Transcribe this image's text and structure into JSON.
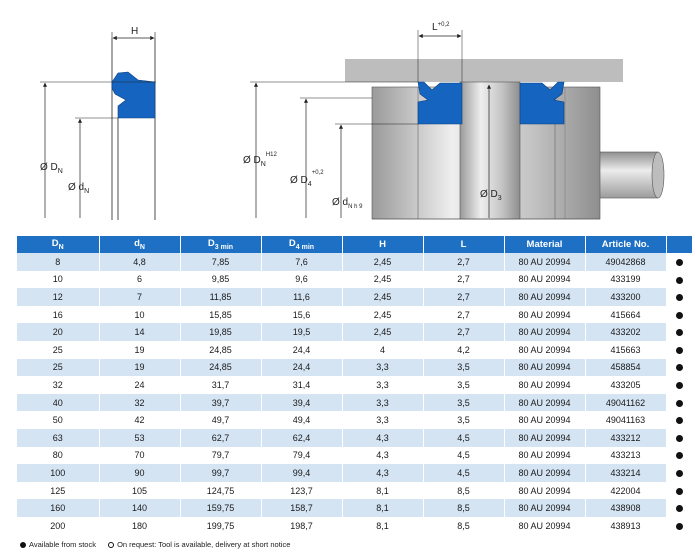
{
  "drawing": {
    "left_labels": {
      "h": "H",
      "dn_prefix": "Ø D",
      "dn_sub": "N",
      "dn2_prefix": "Ø d",
      "dn2_sub": "N"
    },
    "right_labels": {
      "l": "L",
      "l_tol": "+0,2",
      "dn_prefix": "Ø D",
      "dn_sub": "N",
      "dn_sup": "H12",
      "d4_prefix": "Ø D",
      "d4_sub": "4",
      "d4_sup": "+0,2",
      "dnh_prefix": "Ø d",
      "dnh_sub": "N h 9",
      "d3_prefix": "Ø D",
      "d3_sub": "3"
    },
    "colors": {
      "seal": "#1565c0",
      "metal": "#c9c9c9",
      "housing": "#bdbdbd"
    }
  },
  "table": {
    "headers": [
      {
        "main": "D",
        "sub": "N"
      },
      {
        "main": "d",
        "sub": "N"
      },
      {
        "main": "D",
        "sub": "3 min"
      },
      {
        "main": "D",
        "sub": "4 min"
      },
      {
        "main": "H",
        "sub": ""
      },
      {
        "main": "L",
        "sub": ""
      },
      {
        "main": "Material",
        "sub": ""
      },
      {
        "main": "Article No.",
        "sub": ""
      },
      {
        "main": "",
        "sub": ""
      }
    ],
    "rows": [
      [
        "8",
        "4,8",
        "7,85",
        "7,6",
        "2,45",
        "2,7",
        "80 AU 20994",
        "49042868"
      ],
      [
        "10",
        "6",
        "9,85",
        "9,6",
        "2,45",
        "2,7",
        "80 AU 20994",
        "433199"
      ],
      [
        "12",
        "7",
        "11,85",
        "11,6",
        "2,45",
        "2,7",
        "80 AU 20994",
        "433200"
      ],
      [
        "16",
        "10",
        "15,85",
        "15,6",
        "2,45",
        "2,7",
        "80 AU 20994",
        "415664"
      ],
      [
        "20",
        "14",
        "19,85",
        "19,5",
        "2,45",
        "2,7",
        "80 AU 20994",
        "433202"
      ],
      [
        "25",
        "19",
        "24,85",
        "24,4",
        "4",
        "4,2",
        "80 AU 20994",
        "415663"
      ],
      [
        "25",
        "19",
        "24,85",
        "24,4",
        "3,3",
        "3,5",
        "80 AU 20994",
        "458854"
      ],
      [
        "32",
        "24",
        "31,7",
        "31,4",
        "3,3",
        "3,5",
        "80 AU 20994",
        "433205"
      ],
      [
        "40",
        "32",
        "39,7",
        "39,4",
        "3,3",
        "3,5",
        "80 AU 20994",
        "49041162"
      ],
      [
        "50",
        "42",
        "49,7",
        "49,4",
        "3,3",
        "3,5",
        "80 AU 20994",
        "49041163"
      ],
      [
        "63",
        "53",
        "62,7",
        "62,4",
        "4,3",
        "4,5",
        "80 AU 20994",
        "433212"
      ],
      [
        "80",
        "70",
        "79,7",
        "79,4",
        "4,3",
        "4,5",
        "80 AU 20994",
        "433213"
      ],
      [
        "100",
        "90",
        "99,7",
        "99,4",
        "4,3",
        "4,5",
        "80 AU 20994",
        "433214"
      ],
      [
        "125",
        "105",
        "124,75",
        "123,7",
        "8,1",
        "8,5",
        "80 AU 20994",
        "422004"
      ],
      [
        "160",
        "140",
        "159,75",
        "158,7",
        "8,1",
        "8,5",
        "80 AU 20994",
        "438908"
      ],
      [
        "200",
        "180",
        "199,75",
        "198,7",
        "8,1",
        "8,5",
        "80 AU 20994",
        "438913"
      ]
    ],
    "availability_icon": "filled-dot-icon"
  },
  "legend": {
    "available": "Available from stock",
    "on_request": "On request: Tool is available, delivery at short notice"
  }
}
